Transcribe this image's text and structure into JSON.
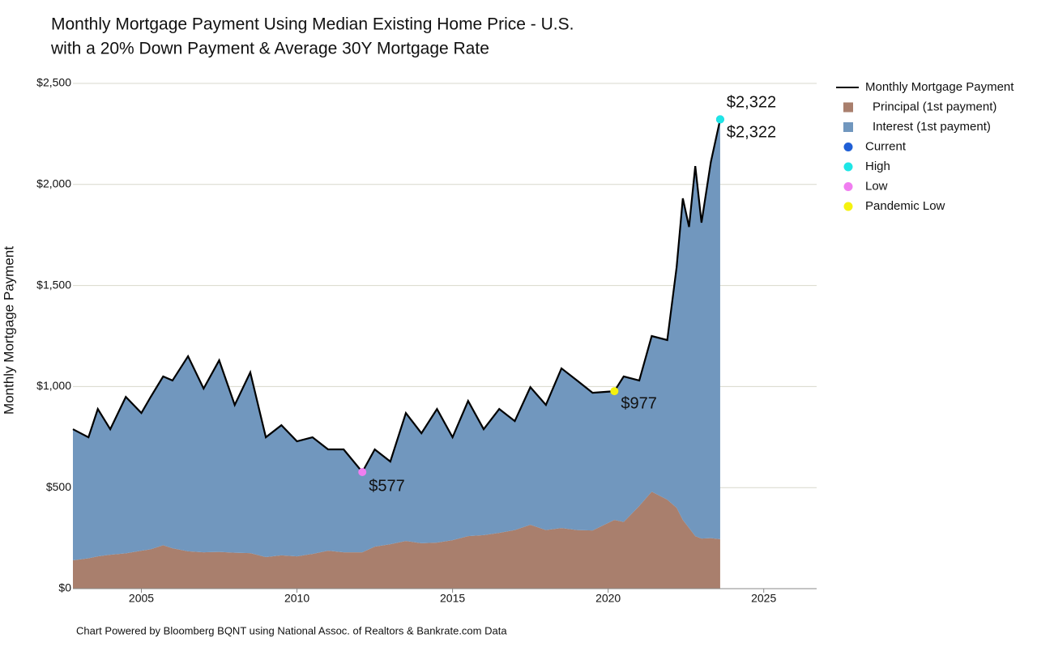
{
  "chart_data": {
    "type": "stacked-area-line",
    "title": "Monthly Mortgage Payment Using Median Existing Home Price - U.S.",
    "subtitle": "with a 20% Down Payment & Average 30Y Mortgage Rate",
    "y_label": "Monthly Mortgage Payment",
    "footer": "Chart Powered by Bloomberg BQNT using National Assoc. of Realtors & Bankrate.com Data",
    "x": [
      2002.8,
      2003.3,
      2003.6,
      2004.0,
      2004.5,
      2005.0,
      2005.3,
      2005.7,
      2006.0,
      2006.5,
      2007.0,
      2007.5,
      2008.0,
      2008.5,
      2009.0,
      2009.5,
      2010.0,
      2010.5,
      2011.0,
      2011.5,
      2012.1,
      2012.5,
      2013.0,
      2013.5,
      2014.0,
      2014.5,
      2015.0,
      2015.5,
      2016.0,
      2016.5,
      2017.0,
      2017.5,
      2018.0,
      2018.5,
      2019.0,
      2019.5,
      2020.2,
      2020.5,
      2021.0,
      2021.4,
      2021.9,
      2022.2,
      2022.4,
      2022.6,
      2022.8,
      2023.0,
      2023.3,
      2023.6
    ],
    "series": [
      {
        "name": "Monthly Mortgage Payment",
        "kind": "line",
        "color": "#000000",
        "values": [
          789,
          749,
          889,
          789,
          949,
          869,
          949,
          1050,
          1030,
          1150,
          990,
          1130,
          909,
          1070,
          749,
          809,
          729,
          749,
          689,
          689,
          577,
          689,
          629,
          869,
          769,
          889,
          749,
          929,
          789,
          889,
          829,
          997,
          909,
          1090,
          1030,
          969,
          977,
          1050,
          1030,
          1250,
          1230,
          1590,
          1931,
          1790,
          2091,
          1811,
          2111,
          2322
        ]
      },
      {
        "name": "Principal (1st payment)",
        "kind": "area",
        "color": "#a97f6d",
        "values": [
          140,
          150,
          160,
          168,
          175,
          188,
          195,
          215,
          200,
          185,
          180,
          182,
          178,
          176,
          156,
          165,
          160,
          172,
          188,
          180,
          180,
          208,
          220,
          236,
          225,
          228,
          240,
          260,
          265,
          276,
          290,
          316,
          290,
          300,
          290,
          288,
          340,
          330,
          409,
          480,
          440,
          400,
          340,
          300,
          260,
          248,
          250,
          245
        ]
      },
      {
        "name": "Interest (1st payment)",
        "kind": "area",
        "color": "#7197be",
        "values": [
          649,
          599,
          729,
          621,
          774,
          681,
          754,
          835,
          830,
          965,
          810,
          948,
          731,
          894,
          593,
          644,
          569,
          577,
          501,
          509,
          397,
          481,
          409,
          633,
          544,
          661,
          509,
          669,
          524,
          613,
          539,
          681,
          619,
          790,
          740,
          681,
          637,
          720,
          621,
          770,
          790,
          1190,
          1591,
          1490,
          1831,
          1563,
          1861,
          2077
        ]
      }
    ],
    "markers": [
      {
        "name": "Current",
        "color": "#1f5fd6",
        "x": 2023.6,
        "value": 2322,
        "value_label": "$2,322"
      },
      {
        "name": "High",
        "color": "#1ee6e6",
        "x": 2023.6,
        "value": 2322,
        "value_label": "$2,322"
      },
      {
        "name": "Low",
        "color": "#f07ef0",
        "x": 2012.1,
        "value": 577,
        "value_label": "$577"
      },
      {
        "name": "Pandemic Low",
        "color": "#f5f20f",
        "x": 2020.2,
        "value": 977,
        "value_label": "$977"
      }
    ],
    "xlim": [
      2002.8,
      2026.7
    ],
    "xticks": [
      2005,
      2010,
      2015,
      2020,
      2025
    ],
    "ylim": [
      0,
      2500
    ],
    "yticks": [
      {
        "value": 0,
        "label": "$0"
      },
      {
        "value": 500,
        "label": "$500"
      },
      {
        "value": 1000,
        "label": "$1,000"
      },
      {
        "value": 1500,
        "label": "$1,500"
      },
      {
        "value": 2000,
        "label": "$2,000"
      },
      {
        "value": 2500,
        "label": "$2,500"
      }
    ],
    "grid": true
  }
}
